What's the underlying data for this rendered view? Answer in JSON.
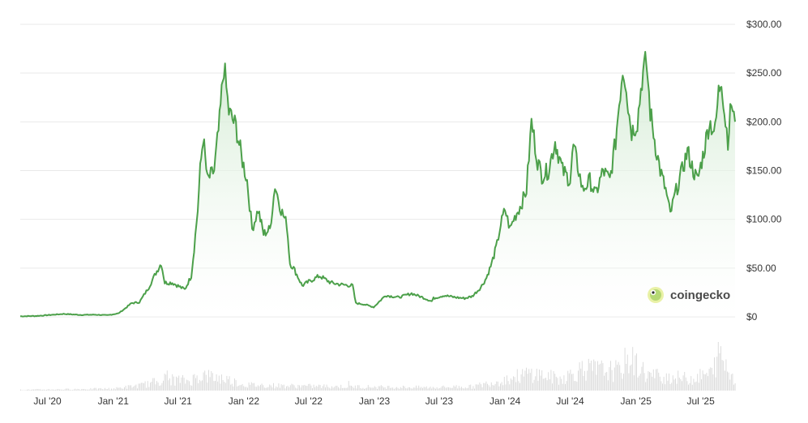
{
  "brand": {
    "name": "coingecko",
    "logo_icon": "gecko-logo-icon"
  },
  "colors": {
    "line": "#4ca04a",
    "fill_top": "#cfe9cf",
    "grid": "#e9e9e9",
    "volume": "#dcdcdc",
    "text": "#333333"
  },
  "chart_data": {
    "type": "area",
    "title": "",
    "xlabel": "",
    "ylabel": "",
    "x_range": [
      "2020-04-16",
      "2025-10-05"
    ],
    "ylim": [
      0,
      300
    ],
    "grid": true,
    "y_ticks": [
      {
        "value": 0,
        "label": "$0"
      },
      {
        "value": 50,
        "label": "$50.00"
      },
      {
        "value": 100,
        "label": "$100.00"
      },
      {
        "value": 150,
        "label": "$150.00"
      },
      {
        "value": 200,
        "label": "$200.00"
      },
      {
        "value": 250,
        "label": "$250.00"
      },
      {
        "value": 300,
        "label": "$300.00"
      }
    ],
    "x_ticks": [
      {
        "date": "2020-07-01",
        "label": "Jul '20"
      },
      {
        "date": "2021-01-01",
        "label": "Jan '21"
      },
      {
        "date": "2021-07-01",
        "label": "Jul '21"
      },
      {
        "date": "2022-01-01",
        "label": "Jan '22"
      },
      {
        "date": "2022-07-01",
        "label": "Jul '22"
      },
      {
        "date": "2023-01-01",
        "label": "Jan '23"
      },
      {
        "date": "2023-07-01",
        "label": "Jul '23"
      },
      {
        "date": "2024-01-01",
        "label": "Jan '24"
      },
      {
        "date": "2024-07-01",
        "label": "Jul '24"
      },
      {
        "date": "2025-01-01",
        "label": "Jan '25"
      },
      {
        "date": "2025-07-01",
        "label": "Jul '25"
      }
    ],
    "price_series": {
      "x": [
        "2020-04-16",
        "2020-06-01",
        "2020-08-15",
        "2020-10-01",
        "2020-11-15",
        "2020-12-15",
        "2021-01-15",
        "2021-02-01",
        "2021-02-21",
        "2021-03-15",
        "2021-04-10",
        "2021-04-30",
        "2021-05-15",
        "2021-05-25",
        "2021-06-15",
        "2021-07-20",
        "2021-08-07",
        "2021-08-15",
        "2021-08-25",
        "2021-09-01",
        "2021-09-09",
        "2021-09-21",
        "2021-10-10",
        "2021-10-25",
        "2021-11-06",
        "2021-11-20",
        "2021-12-10",
        "2021-12-25",
        "2022-01-10",
        "2022-01-24",
        "2022-02-10",
        "2022-02-25",
        "2022-03-15",
        "2022-03-29",
        "2022-04-15",
        "2022-05-01",
        "2022-05-10",
        "2022-05-20",
        "2022-06-13",
        "2022-07-01",
        "2022-08-01",
        "2022-09-01",
        "2022-10-01",
        "2022-11-01",
        "2022-11-10",
        "2022-12-01",
        "2022-12-30",
        "2023-02-01",
        "2023-03-10",
        "2023-04-15",
        "2023-05-15",
        "2023-06-10",
        "2023-06-15",
        "2023-07-15",
        "2023-08-15",
        "2023-09-10",
        "2023-10-01",
        "2023-10-25",
        "2023-11-10",
        "2023-11-25",
        "2023-12-10",
        "2023-12-20",
        "2024-01-01",
        "2024-01-15",
        "2024-01-25",
        "2024-02-15",
        "2024-03-01",
        "2024-03-15",
        "2024-04-01",
        "2024-04-13",
        "2024-05-01",
        "2024-05-20",
        "2024-06-10",
        "2024-07-01",
        "2024-07-10",
        "2024-07-25",
        "2024-08-05",
        "2024-08-25",
        "2024-09-10",
        "2024-10-01",
        "2024-10-20",
        "2024-11-05",
        "2024-11-15",
        "2024-11-25",
        "2024-12-05",
        "2024-12-10",
        "2024-12-20",
        "2025-01-05",
        "2025-01-18",
        "2025-01-30",
        "2025-02-10",
        "2025-02-25",
        "2025-03-10",
        "2025-03-25",
        "2025-04-07",
        "2025-04-20",
        "2025-05-10",
        "2025-05-25",
        "2025-06-10",
        "2025-06-22",
        "2025-07-10",
        "2025-07-25",
        "2025-08-10",
        "2025-08-20",
        "2025-08-28",
        "2025-09-05",
        "2025-09-15",
        "2025-09-25",
        "2025-10-05"
      ],
      "values": [
        0.6,
        0.9,
        3.0,
        2.0,
        2.2,
        1.6,
        3.5,
        8.0,
        14.0,
        15.0,
        30.0,
        45.0,
        55.0,
        35.0,
        35.0,
        28.0,
        42.0,
        70.0,
        110.0,
        150.0,
        185.0,
        140.0,
        150.0,
        200.0,
        258.0,
        210.0,
        195.0,
        165.0,
        140.0,
        90.0,
        110.0,
        85.0,
        90.0,
        135.0,
        110.0,
        95.0,
        55.0,
        50.0,
        32.0,
        36.0,
        42.0,
        35.0,
        33.0,
        32.0,
        14.0,
        13.0,
        10.0,
        22.0,
        20.0,
        24.0,
        20.0,
        16.0,
        19.0,
        22.0,
        20.0,
        19.0,
        21.0,
        30.0,
        40.0,
        55.0,
        75.0,
        95.0,
        110.0,
        90.0,
        100.0,
        115.0,
        130.0,
        200.0,
        160.0,
        145.0,
        150.0,
        180.0,
        150.0,
        140.0,
        175.0,
        150.0,
        130.0,
        140.0,
        125.0,
        150.0,
        140.0,
        180.0,
        220.0,
        255.0,
        240.0,
        215.0,
        190.0,
        200.0,
        245.0,
        262.0,
        210.0,
        175.0,
        150.0,
        130.0,
        105.0,
        125.0,
        150.0,
        170.0,
        150.0,
        140.0,
        170.0,
        200.0,
        190.0,
        230.0,
        247.0,
        210.0,
        182.0,
        220.0,
        200.0
      ]
    },
    "volume_series": {
      "x": [
        "2020-04-16",
        "2021-01-01",
        "2021-04-01",
        "2021-05-20",
        "2021-08-01",
        "2021-09-01",
        "2021-11-10",
        "2022-01-01",
        "2022-05-01",
        "2022-11-15",
        "2023-06-01",
        "2023-10-01",
        "2023-12-15",
        "2024-03-15",
        "2024-06-01",
        "2024-08-05",
        "2024-11-15",
        "2024-12-10",
        "2025-02-01",
        "2025-04-07",
        "2025-06-01",
        "2025-08-01",
        "2025-08-20",
        "2025-09-15",
        "2025-10-05"
      ],
      "values": [
        0.02,
        0.05,
        0.15,
        0.3,
        0.25,
        0.4,
        0.3,
        0.15,
        0.12,
        0.1,
        0.08,
        0.1,
        0.25,
        0.45,
        0.3,
        0.55,
        0.5,
        0.85,
        0.4,
        0.35,
        0.3,
        0.45,
        1.0,
        0.5,
        0.3
      ]
    }
  }
}
